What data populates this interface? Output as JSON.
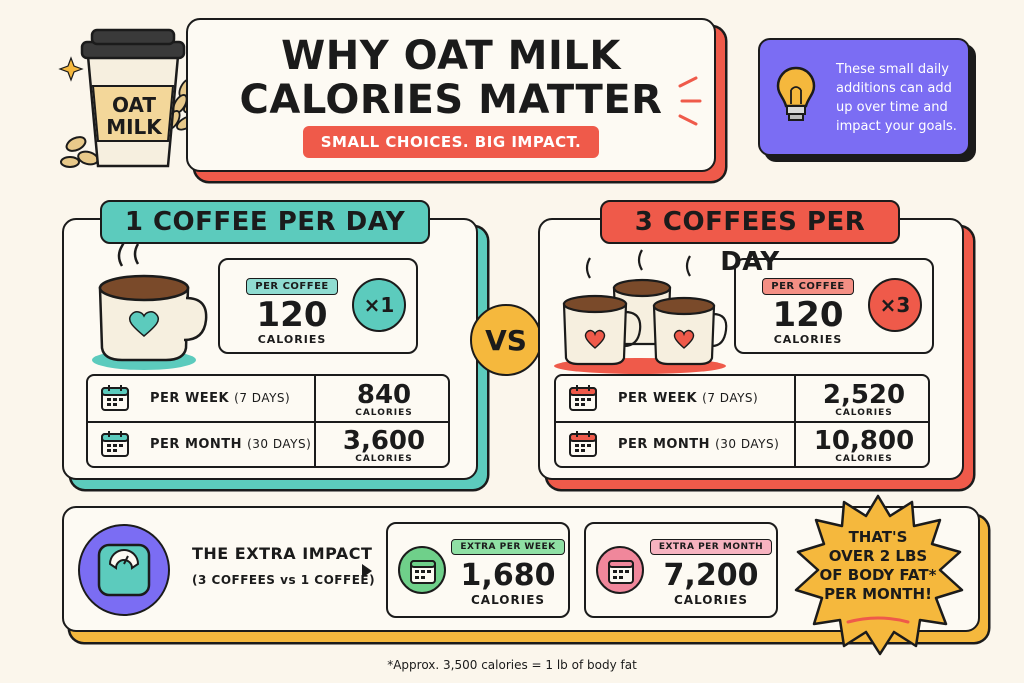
{
  "header": {
    "cup_label_line1": "OAT",
    "cup_label_line2": "MILK",
    "title_line1": "WHY OAT MILK",
    "title_line2": "CALORIES MATTER",
    "subtitle": "SMALL CHOICES. BIG IMPACT."
  },
  "tip": {
    "icon": "lightbulb-icon",
    "text": "These small daily additions can add up over time and impact your goals."
  },
  "left": {
    "title": "1 COFFEE PER DAY",
    "per_coffee_label": "PER COFFEE",
    "per_coffee_value": "120",
    "per_coffee_unit": "CALORIES",
    "multiplier": "×1",
    "rows": [
      {
        "label": "PER WEEK",
        "sub": "(7 DAYS)",
        "value": "840",
        "unit": "CALORIES"
      },
      {
        "label": "PER MONTH",
        "sub": "(30 DAYS)",
        "value": "3,600",
        "unit": "CALORIES"
      }
    ]
  },
  "vs": "VS",
  "right": {
    "title": "3 COFFEES PER DAY",
    "per_coffee_label": "PER COFFEE",
    "per_coffee_value": "120",
    "per_coffee_unit": "CALORIES",
    "multiplier": "×3",
    "rows": [
      {
        "label": "PER WEEK",
        "sub": "(7 DAYS)",
        "value": "2,520",
        "unit": "CALORIES"
      },
      {
        "label": "PER MONTH",
        "sub": "(30 DAYS)",
        "value": "10,800",
        "unit": "CALORIES"
      }
    ]
  },
  "impact": {
    "title": "THE EXTRA IMPACT",
    "subtitle": "(3 COFFEES vs 1 COFFEE)",
    "week_label": "EXTRA PER WEEK",
    "week_value": "1,680",
    "week_unit": "CALORIES",
    "month_label": "EXTRA PER MONTH",
    "month_value": "7,200",
    "month_unit": "CALORIES",
    "burst_line1": "THAT'S",
    "burst_line2": "OVER 2 LBS",
    "burst_line3": "OF BODY FAT*",
    "burst_line4": "PER MONTH!"
  },
  "footnote": "*Approx. 3,500 calories = 1 lb of body fat",
  "colors": {
    "teal": "#5ccbbd",
    "red": "#ef5a4a",
    "purple": "#7b6df3",
    "yellow": "#f5b83d",
    "green": "#6fd08a",
    "pink": "#f0879b",
    "cream": "#fdfaf3"
  }
}
